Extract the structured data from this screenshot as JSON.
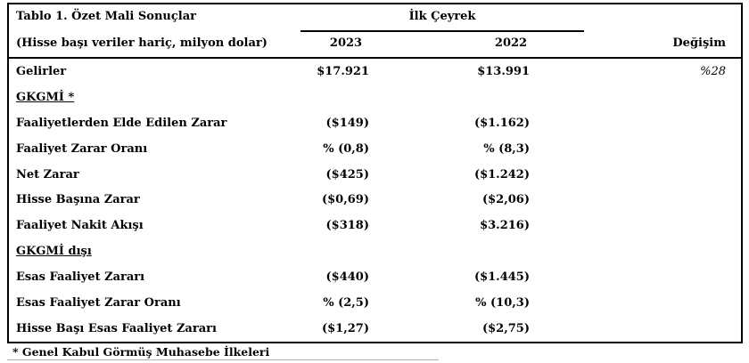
{
  "document": {
    "title": "Tablo 1. Özet Mali Sonuçlar",
    "subtitle": "(Hisse başı veriler hariç, milyon dolar)",
    "footnote": "* Genel Kabul Görmüş Muhasebe İlkeleri"
  },
  "table": {
    "group_header": "İlk Çeyrek",
    "columns": {
      "y2023": "2023",
      "y2022": "2022",
      "change": "Değişim"
    },
    "rows": [
      {
        "type": "data",
        "label": "Gelirler",
        "v2023": "$17.921",
        "v2022": "$13.991",
        "change": "%28"
      },
      {
        "type": "section",
        "label": "GKGMİ *"
      },
      {
        "type": "data",
        "label": "Faaliyetlerden Elde Edilen Zarar",
        "v2023": "($149)",
        "v2022": "($1.162)"
      },
      {
        "type": "data",
        "label": "Faaliyet Zarar Oranı",
        "v2023": "% (0,8)",
        "v2022": "% (8,3)"
      },
      {
        "type": "data",
        "label": "Net Zarar",
        "v2023": "($425)",
        "v2022": "($1.242)"
      },
      {
        "type": "data",
        "label": "Hisse Başına Zarar",
        "v2023": "($0,69)",
        "v2022": "($2,06)"
      },
      {
        "type": "data",
        "label": "Faaliyet Nakit Akışı",
        "v2023": "($318)",
        "v2022": "$3.216)"
      },
      {
        "type": "section",
        "label": "GKGMİ dışı"
      },
      {
        "type": "data",
        "label": "Esas Faaliyet Zararı",
        "v2023": "($440)",
        "v2022": "($1.445)"
      },
      {
        "type": "data",
        "label": "Esas Faaliyet Zarar Oranı",
        "v2023": "% (2,5)",
        "v2022": "% (10,3)"
      },
      {
        "type": "data",
        "label": "Hisse Başı Esas Faaliyet Zararı",
        "v2023": "($1,27)",
        "v2022": "($2,75)"
      }
    ]
  },
  "colors": {
    "background": "#ffffff",
    "text": "#000000",
    "border": "#000000",
    "faint_rule": "#b3b3b3"
  }
}
